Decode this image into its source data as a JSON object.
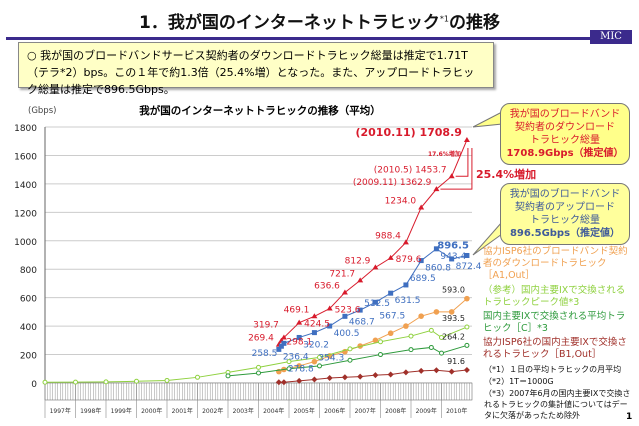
{
  "slide": {
    "title": "1．我が国のインターネットトラヒック",
    "title_sup": "*1",
    "title_suffix": "の推移",
    "logo": "MIC",
    "page_number": "1",
    "summary": "○ 我が国のブロードバンドサービス契約者のダウンロードトラヒック総量は推定で1.71T（テラ*2）bps。この１年で約1.3倍（25.4%増）となった。また、アップロードトラヒック総量は推定で896.5Gbps。"
  },
  "callouts": {
    "download": {
      "lines": [
        "我が国のブロードバンド",
        "契約者のダウンロード",
        "トラヒック総量"
      ],
      "value": "1708.9Gbps（推定値）",
      "color": "#d81b2c"
    },
    "upload": {
      "lines": [
        "我が国のブロードバンド",
        "契約者のアップロード",
        "トラヒック総量"
      ],
      "value": "896.5Gbps（推定値）",
      "color": "#3f5a9a"
    },
    "increase_year": "25.4%増加",
    "increase_half": "17.6%増加"
  },
  "legend": [
    {
      "text": "協力ISP6社のブロードバンド契約者のダウンロードトラヒック［A1,Out］",
      "color": "#f0a050"
    },
    {
      "text": "（参考）国内主要IXで交換されるトラヒックピーク値*3",
      "color": "#8fd13f"
    },
    {
      "text": "国内主要IXで交換される平均トラヒック［C］*3",
      "color": "#2e9a3c"
    },
    {
      "text": "協力ISP6社の国内主要IXで交換されるトラヒック［B1,Out］",
      "color": "#a0302a"
    }
  ],
  "footnotes": [
    "（*1）１日の平均トラヒックの月平均",
    "（*2）1T＝1000G",
    "（*3）2007年6月の国内主要IXで交換されるトラヒックの集計値についてはデータに欠落があったため除外"
  ],
  "chart_data": {
    "type": "line",
    "title": "我が国のインターネットトラヒックの推移（平均）",
    "ylabel": "(Gbps)",
    "ylim": [
      0,
      1800
    ],
    "yticks": [
      0,
      200,
      400,
      600,
      800,
      1000,
      1200,
      1400,
      1600,
      1800
    ],
    "xlim": [
      "1997-01",
      "2010-12"
    ],
    "xticks": [
      "1997年",
      "1998年",
      "1999年",
      "2000年",
      "2001年",
      "2002年",
      "2003年",
      "2004年",
      "2005年",
      "2006年",
      "2007年",
      "2008年",
      "2009年",
      "2010年"
    ],
    "grid": true,
    "series": [
      {
        "color": "#d81b2c",
        "marker": "triangle",
        "x": [
          "2004-09",
          "2004-10",
          "2004-11",
          "2005-05",
          "2005-11",
          "2006-05",
          "2006-11",
          "2007-05",
          "2007-11",
          "2008-05",
          "2008-11",
          "2009-05",
          "2009-11",
          "2010-05",
          "2010-11"
        ],
        "y": [
          269.4,
          298.1,
          319.7,
          424.5,
          469.1,
          523.6,
          636.6,
          721.7,
          812.9,
          879.6,
          988.4,
          1234.0,
          1362.9,
          1453.7,
          1708.9
        ],
        "labels": [
          "269.4",
          "298.1",
          "319.7",
          "424.5",
          "469.1",
          "523.6",
          "636.6",
          "721.7",
          "812.9",
          "879.6",
          "988.4",
          "1234.0",
          "(2009.11) 1362.9",
          "(2010.5) 1453.7",
          "(2010.11) 1708.9"
        ]
      },
      {
        "color": "#3f6fc0",
        "marker": "square",
        "x": [
          "2004-09",
          "2004-10",
          "2004-11",
          "2005-05",
          "2005-11",
          "2006-05",
          "2006-11",
          "2007-05",
          "2007-11",
          "2008-05",
          "2008-11",
          "2009-05",
          "2009-11",
          "2010-05",
          "2010-11"
        ],
        "y": [
          236.4,
          258.5,
          278.8,
          320.2,
          354.3,
          400.5,
          468.7,
          512.5,
          567.5,
          631.5,
          689.5,
          860.8,
          943.4,
          872.4,
          896.5
        ],
        "labels": [
          "236.4",
          "258.5",
          "278.8",
          "320.2",
          "354.3",
          "400.5",
          "468.7",
          "512.5",
          "567.5",
          "631.5",
          "689.5",
          "860.8",
          "943.4",
          "872.4",
          "896.5"
        ]
      },
      {
        "color": "#f0a050",
        "marker": "circle",
        "x": [
          "2004-09",
          "2004-11",
          "2005-05",
          "2005-11",
          "2006-05",
          "2006-11",
          "2007-05",
          "2007-11",
          "2008-05",
          "2008-11",
          "2009-05",
          "2009-11",
          "2010-05",
          "2010-11"
        ],
        "y": [
          80,
          95,
          120,
          150,
          190,
          220,
          260,
          300,
          350,
          400,
          470,
          500,
          500,
          593.0
        ],
        "labels": [
          "",
          "",
          "",
          "",
          "",
          "",
          "",
          "",
          "",
          "",
          "",
          "",
          "",
          "593.0"
        ]
      },
      {
        "color": "#8fd13f",
        "marker": "open-circle",
        "x": [
          "1997-01",
          "1998-01",
          "1999-01",
          "2000-01",
          "2001-01",
          "2002-01",
          "2003-01",
          "2004-01",
          "2005-01",
          "2006-01",
          "2007-01",
          "2008-01",
          "2009-01",
          "2009-09",
          "2010-01",
          "2010-11"
        ],
        "y": [
          5,
          6,
          8,
          12,
          18,
          40,
          75,
          110,
          150,
          180,
          240,
          290,
          330,
          370,
          320,
          393.5
        ],
        "labels": [
          "",
          "",
          "",
          "",
          "",
          "",
          "",
          "",
          "",
          "",
          "",
          "",
          "",
          "",
          "",
          "393.5"
        ]
      },
      {
        "color": "#2e9a3c",
        "marker": "open-circle",
        "x": [
          "2003-01",
          "2004-01",
          "2005-01",
          "2006-01",
          "2007-01",
          "2008-01",
          "2009-01",
          "2009-09",
          "2010-01",
          "2010-11"
        ],
        "y": [
          50,
          70,
          100,
          120,
          160,
          200,
          235,
          250,
          210,
          264.2
        ],
        "labels": [
          "",
          "",
          "",
          "",
          "",
          "",
          "",
          "",
          "",
          "264.2"
        ]
      },
      {
        "color": "#a0302a",
        "marker": "diamond",
        "x": [
          "2004-09",
          "2004-11",
          "2005-05",
          "2005-11",
          "2006-05",
          "2006-11",
          "2007-05",
          "2007-11",
          "2008-05",
          "2008-11",
          "2009-05",
          "2009-11",
          "2010-05",
          "2010-11"
        ],
        "y": [
          5,
          5,
          15,
          25,
          35,
          40,
          45,
          55,
          60,
          75,
          85,
          90,
          80,
          91.6
        ],
        "labels": [
          "",
          "",
          "",
          "",
          "",
          "",
          "",
          "",
          "",
          "",
          "",
          "",
          "",
          "91.6"
        ]
      }
    ]
  }
}
